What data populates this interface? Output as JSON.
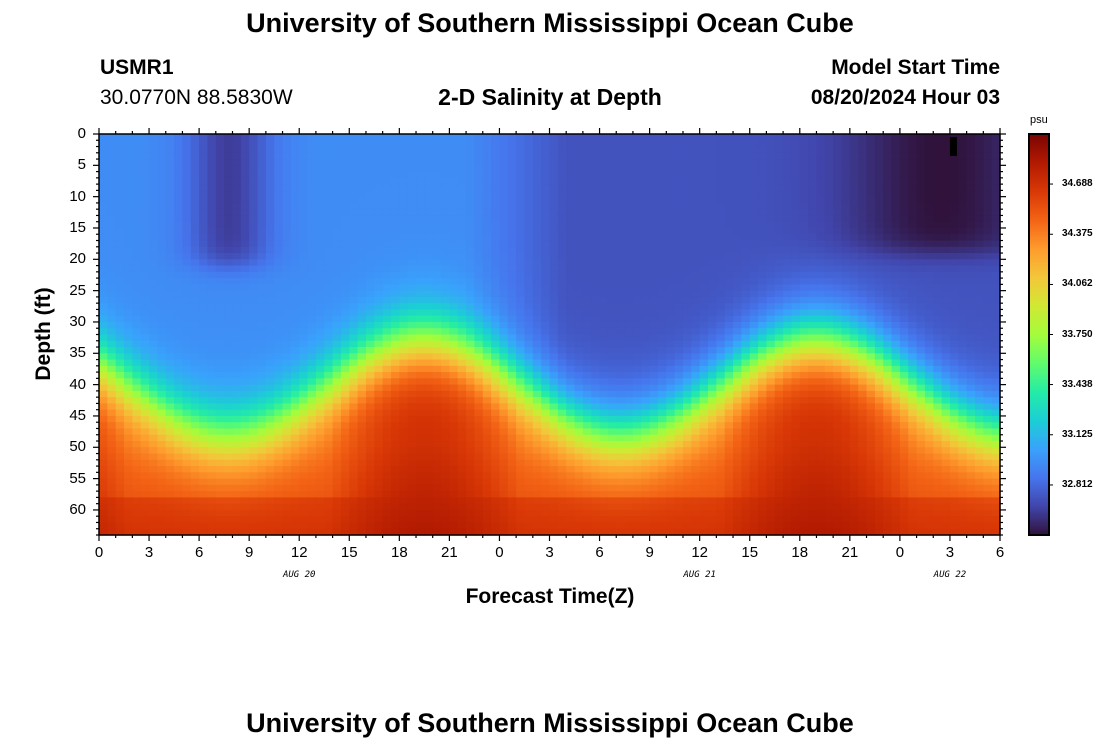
{
  "header": {
    "title": "University of Southern Mississippi Ocean Cube",
    "station": "USMR1",
    "coords": "30.0770N  88.5830W",
    "subtitle": "2-D Salinity at Depth",
    "model_label": "Model Start Time",
    "model_time": "08/20/2024 Hour 03"
  },
  "footer": {
    "title": "University of Southern Mississippi Ocean Cube"
  },
  "chart_data": {
    "type": "heatmap",
    "title": "2-D Salinity at Depth",
    "xlabel": "Forecast Time(Z)",
    "ylabel": "Depth (ft)",
    "x_range_hours": [
      0,
      54
    ],
    "x_tick_labels": [
      "0",
      "3",
      "6",
      "9",
      "12",
      "15",
      "18",
      "21",
      "0",
      "3",
      "6",
      "9",
      "12",
      "15",
      "18",
      "21",
      "0",
      "3",
      "6"
    ],
    "x_tick_hours": [
      0,
      3,
      6,
      9,
      12,
      15,
      18,
      21,
      24,
      27,
      30,
      33,
      36,
      39,
      42,
      45,
      48,
      51,
      54
    ],
    "date_labels": [
      {
        "text": "AUG 20",
        "hour": 12
      },
      {
        "text": "AUG 21",
        "hour": 36
      },
      {
        "text": "AUG 22",
        "hour": 51
      }
    ],
    "y_range": [
      0,
      64
    ],
    "y_reversed": true,
    "y_ticks": [
      0,
      5,
      10,
      15,
      20,
      25,
      30,
      35,
      40,
      45,
      50,
      55,
      60
    ],
    "colorbar": {
      "unit": "psu",
      "min": 32.5,
      "max": 35.0,
      "labels": [
        "34.688",
        "34.375",
        "34.062",
        "33.750",
        "33.438",
        "33.125",
        "32.812"
      ],
      "colors": [
        "#30123b",
        "#4145ab",
        "#4675ed",
        "#39a2fc",
        "#1bcfd4",
        "#24eca6",
        "#61fc6c",
        "#a4fc3b",
        "#d1e834",
        "#f3c63a",
        "#fe9b2d",
        "#f36315",
        "#d93806",
        "#b11901",
        "#7a0402"
      ]
    },
    "salinity_model": {
      "surface_layer_psu": 32.95,
      "bottom_layer_psu": 34.7,
      "halocline_depth_range_ft": [
        29,
        44
      ],
      "low_salinity_surface_patches": [
        {
          "hour_center": 7.8,
          "depth_max_ft": 21,
          "min_psu": 32.65
        },
        {
          "hour_center": 50.5,
          "depth_max_ft": 19,
          "min_psu": 32.5
        }
      ]
    }
  }
}
